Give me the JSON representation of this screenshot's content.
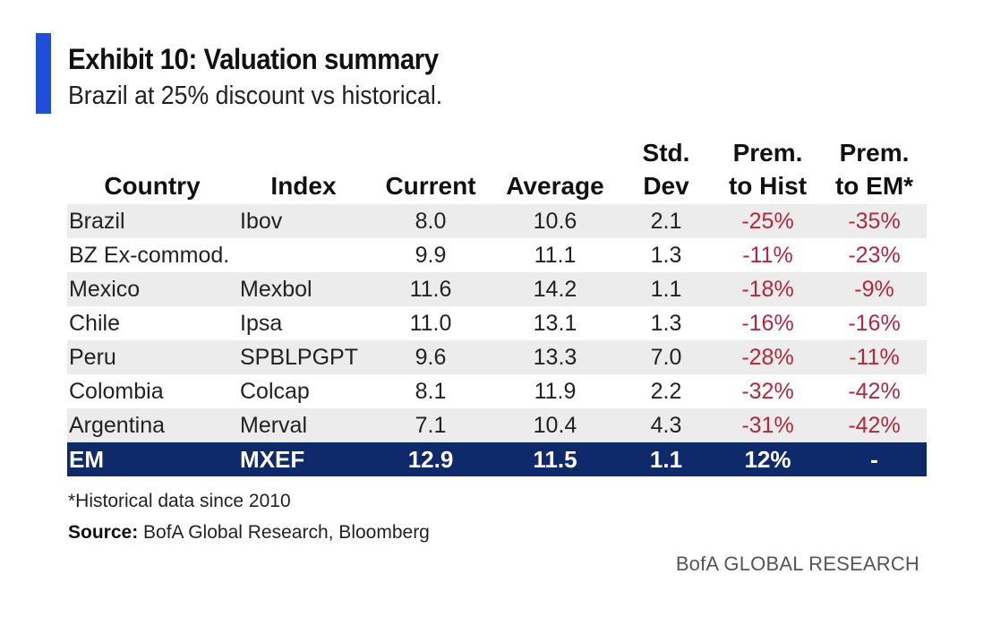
{
  "title": "Exhibit 10: Valuation summary",
  "subtitle": "Brazil at 25% discount vs historical.",
  "colors": {
    "accent": "#1f4fd8",
    "em_row": "#0f2a6b",
    "negative": "#b3283c",
    "stripe": "#ececec"
  },
  "chart_data": {
    "type": "table",
    "columns": [
      {
        "key": "country",
        "line1": "",
        "line2": "Country"
      },
      {
        "key": "index",
        "line1": "",
        "line2": "Index"
      },
      {
        "key": "current",
        "line1": "",
        "line2": "Current"
      },
      {
        "key": "average",
        "line1": "",
        "line2": "Average"
      },
      {
        "key": "std_dev",
        "line1": "Std.",
        "line2": "Dev"
      },
      {
        "key": "prem_hist",
        "line1": "Prem.",
        "line2": "to Hist"
      },
      {
        "key": "prem_em",
        "line1": "Prem.",
        "line2": "to EM*"
      }
    ],
    "rows": [
      {
        "country": "Brazil",
        "index": "Ibov",
        "current": "8.0",
        "average": "10.6",
        "std_dev": "2.1",
        "prem_hist": "-25%",
        "prem_em": "-35%"
      },
      {
        "country": "BZ Ex-commod.",
        "index": "",
        "current": "9.9",
        "average": "11.1",
        "std_dev": "1.3",
        "prem_hist": "-11%",
        "prem_em": "-23%"
      },
      {
        "country": "Mexico",
        "index": "Mexbol",
        "current": "11.6",
        "average": "14.2",
        "std_dev": "1.1",
        "prem_hist": "-18%",
        "prem_em": "-9%"
      },
      {
        "country": "Chile",
        "index": "Ipsa",
        "current": "11.0",
        "average": "13.1",
        "std_dev": "1.3",
        "prem_hist": "-16%",
        "prem_em": "-16%"
      },
      {
        "country": "Peru",
        "index": "SPBLPGPT",
        "current": "9.6",
        "average": "13.3",
        "std_dev": "7.0",
        "prem_hist": "-28%",
        "prem_em": "-11%"
      },
      {
        "country": "Colombia",
        "index": "Colcap",
        "current": "8.1",
        "average": "11.9",
        "std_dev": "2.2",
        "prem_hist": "-32%",
        "prem_em": "-42%"
      },
      {
        "country": "Argentina",
        "index": "Merval",
        "current": "7.1",
        "average": "10.4",
        "std_dev": "4.3",
        "prem_hist": "-31%",
        "prem_em": "-42%"
      }
    ],
    "highlight_row": {
      "country": "EM",
      "index": "MXEF",
      "current": "12.9",
      "average": "11.5",
      "std_dev": "1.1",
      "prem_hist": "12%",
      "prem_em": "-"
    }
  },
  "footnote": "*Historical data since 2010",
  "source": {
    "label": "Source:",
    "text": " BofA Global Research, Bloomberg"
  },
  "brand": "BofA GLOBAL RESEARCH"
}
